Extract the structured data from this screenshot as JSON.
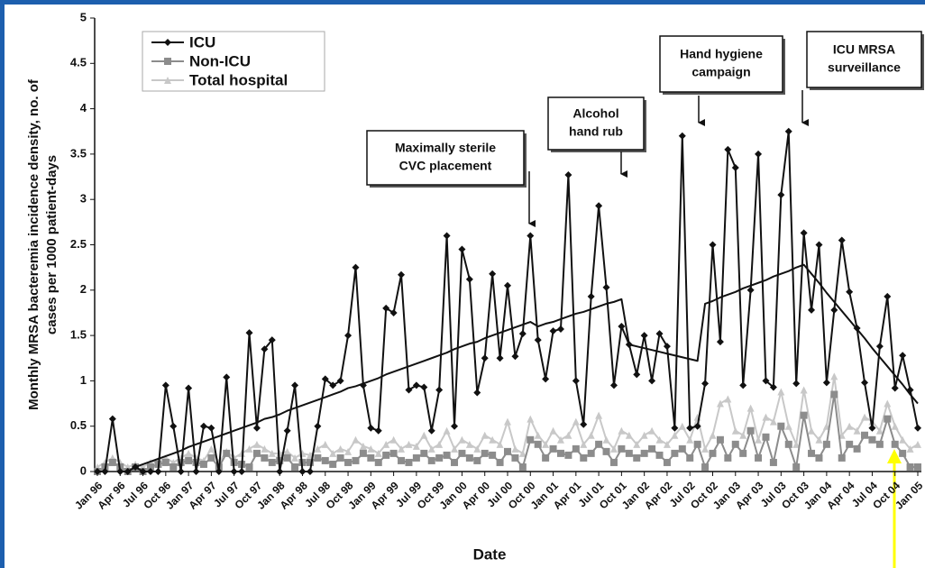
{
  "chart_data": {
    "type": "line",
    "y_label": [
      "Monthly MRSA bacteremia incidence density, no. of",
      "cases per 1000 patient-days"
    ],
    "x_label": "Date",
    "categories": [
      "Jan 96",
      null,
      null,
      "Apr 96",
      null,
      null,
      "Jul 96",
      null,
      null,
      "Oct 96",
      null,
      null,
      "Jan 97",
      null,
      null,
      "Apr 97",
      null,
      null,
      "Jul 97",
      null,
      null,
      "Oct 97",
      null,
      null,
      "Jan 98",
      null,
      null,
      "Apr 98",
      null,
      null,
      "Jul 98",
      null,
      null,
      "Oct 98",
      null,
      null,
      "Jan 99",
      null,
      null,
      "Apr 99",
      null,
      null,
      "Jul 99",
      null,
      null,
      "Oct 99",
      null,
      null,
      "Jan 00",
      null,
      null,
      "Apr 00",
      null,
      null,
      "Jul 00",
      null,
      null,
      "Oct 00",
      null,
      null,
      "Jan 01",
      null,
      null,
      "Apr 01",
      null,
      null,
      "Jul 01",
      null,
      null,
      "Oct 01",
      null,
      null,
      "Jan 02",
      null,
      null,
      "Apr 02",
      null,
      null,
      "Jul 02",
      null,
      null,
      "Oct 02",
      null,
      null,
      "Jan 03",
      null,
      null,
      "Apr 03",
      null,
      null,
      "Jul 03",
      null,
      null,
      "Oct 03",
      null,
      null,
      "Jan 04",
      null,
      null,
      "Apr 04",
      null,
      null,
      "Jul 04",
      null,
      null,
      "Oct 04",
      null,
      null,
      "Jan 05"
    ],
    "series": [
      {
        "name": "Total hospital",
        "color": "#c8c8c8",
        "marker": "triangle",
        "values": [
          0.05,
          0.1,
          0.15,
          0.1,
          0.05,
          0.08,
          0.05,
          0.1,
          0.12,
          0.15,
          0.1,
          0.15,
          0.2,
          0.15,
          0.12,
          0.25,
          0.1,
          0.22,
          0.15,
          0.2,
          0.25,
          0.3,
          0.25,
          0.2,
          0.2,
          0.22,
          0.15,
          0.2,
          0.18,
          0.25,
          0.3,
          0.2,
          0.25,
          0.22,
          0.35,
          0.28,
          0.25,
          0.2,
          0.3,
          0.35,
          0.25,
          0.3,
          0.28,
          0.4,
          0.25,
          0.3,
          0.45,
          0.25,
          0.35,
          0.3,
          0.25,
          0.4,
          0.35,
          0.3,
          0.55,
          0.25,
          0.2,
          0.58,
          0.4,
          0.3,
          0.45,
          0.35,
          0.4,
          0.55,
          0.3,
          0.4,
          0.62,
          0.35,
          0.25,
          0.45,
          0.4,
          0.3,
          0.4,
          0.45,
          0.35,
          0.3,
          0.4,
          0.5,
          0.35,
          0.6,
          0.25,
          0.4,
          0.75,
          0.8,
          0.45,
          0.4,
          0.7,
          0.35,
          0.6,
          0.55,
          0.88,
          0.5,
          0.3,
          0.9,
          0.45,
          0.35,
          0.5,
          1.05,
          0.4,
          0.5,
          0.45,
          0.6,
          0.55,
          0.45,
          0.75,
          0.5,
          0.35,
          0.25,
          0.3
        ]
      },
      {
        "name": "Non-ICU",
        "color": "#8c8c8c",
        "marker": "square",
        "values": [
          0,
          0.05,
          0.1,
          0.05,
          0,
          0.05,
          0,
          0.05,
          0.08,
          0.1,
          0.05,
          0.1,
          0.12,
          0.1,
          0.08,
          0.15,
          0.05,
          0.2,
          0.1,
          0.08,
          0.05,
          0.2,
          0.15,
          0.1,
          0.12,
          0.15,
          0.05,
          0.1,
          0.1,
          0.15,
          0.12,
          0.08,
          0.15,
          0.1,
          0.12,
          0.2,
          0.15,
          0.1,
          0.18,
          0.2,
          0.12,
          0.1,
          0.15,
          0.2,
          0.12,
          0.15,
          0.18,
          0.1,
          0.2,
          0.15,
          0.12,
          0.2,
          0.18,
          0.1,
          0.22,
          0.15,
          0.05,
          0.35,
          0.3,
          0.15,
          0.25,
          0.2,
          0.18,
          0.25,
          0.15,
          0.2,
          0.3,
          0.22,
          0.1,
          0.25,
          0.2,
          0.15,
          0.2,
          0.25,
          0.18,
          0.1,
          0.2,
          0.25,
          0.15,
          0.3,
          0.05,
          0.2,
          0.35,
          0.15,
          0.3,
          0.2,
          0.45,
          0.15,
          0.38,
          0.1,
          0.5,
          0.3,
          0.05,
          0.62,
          0.2,
          0.15,
          0.3,
          0.85,
          0.15,
          0.3,
          0.25,
          0.4,
          0.35,
          0.3,
          0.58,
          0.3,
          0.2,
          0.05,
          0.05
        ]
      },
      {
        "name": "ICU",
        "color": "#111111",
        "marker": "diamond",
        "values": [
          0,
          0,
          0.58,
          0,
          0,
          0.05,
          0,
          0,
          0,
          0.95,
          0.5,
          0,
          0.92,
          0,
          0.5,
          0.48,
          0,
          1.04,
          0,
          0,
          1.53,
          0.48,
          1.35,
          1.45,
          0,
          0.45,
          0.95,
          0,
          0,
          0.5,
          1.02,
          0.95,
          1.0,
          1.5,
          2.25,
          0.95,
          0.48,
          0.45,
          1.8,
          1.75,
          2.17,
          0.9,
          0.95,
          0.93,
          0.45,
          0.9,
          2.6,
          0.5,
          2.45,
          2.12,
          0.87,
          1.25,
          2.18,
          1.25,
          2.05,
          1.27,
          1.52,
          2.6,
          1.45,
          1.02,
          1.55,
          1.57,
          3.27,
          1.0,
          0.52,
          1.93,
          2.93,
          2.03,
          0.95,
          1.6,
          1.4,
          1.07,
          1.5,
          1.0,
          1.52,
          1.38,
          0.48,
          3.7,
          0.48,
          0.5,
          0.97,
          2.5,
          1.43,
          3.55,
          3.35,
          0.95,
          2.0,
          3.5,
          1.0,
          0.93,
          3.05,
          3.75,
          0.97,
          2.63,
          1.78,
          2.5,
          0.98,
          1.78,
          2.55,
          1.98,
          1.58,
          0.98,
          0.48,
          1.38,
          1.93,
          0.92,
          1.28,
          0.9,
          0.48
        ]
      }
    ],
    "trend": {
      "color": "#111111",
      "values": [
        null,
        null,
        null,
        null,
        null,
        0.05,
        0.08,
        0.11,
        0.14,
        0.17,
        0.2,
        0.23,
        0.27,
        0.3,
        0.33,
        0.36,
        0.39,
        0.42,
        0.45,
        0.48,
        0.51,
        0.54,
        0.58,
        0.6,
        0.63,
        0.67,
        0.7,
        0.73,
        0.76,
        0.79,
        0.82,
        0.85,
        0.88,
        0.92,
        0.94,
        0.97,
        1.0,
        1.03,
        1.07,
        1.1,
        1.13,
        1.16,
        1.19,
        1.22,
        1.25,
        1.28,
        1.31,
        1.35,
        1.38,
        1.41,
        1.43,
        1.47,
        1.5,
        1.53,
        1.56,
        1.59,
        1.62,
        1.65,
        1.6,
        1.63,
        1.65,
        1.68,
        1.71,
        1.74,
        1.76,
        1.79,
        1.82,
        1.85,
        1.87,
        1.9,
        1.4,
        1.38,
        1.36,
        1.34,
        1.32,
        1.3,
        1.28,
        1.26,
        1.24,
        1.22,
        1.85,
        1.88,
        1.92,
        1.95,
        1.98,
        2.02,
        2.05,
        2.08,
        2.11,
        2.15,
        2.18,
        2.21,
        2.25,
        2.28,
        2.18,
        2.08,
        1.97,
        1.87,
        1.77,
        1.67,
        1.57,
        1.47,
        1.36,
        1.26,
        1.16,
        1.06,
        0.96,
        0.85,
        0.75
      ]
    },
    "annotations": [
      {
        "text": [
          "Maximally sterile",
          "CVC placement"
        ]
      },
      {
        "text": [
          "Alcohol",
          "hand rub"
        ]
      },
      {
        "text": [
          "Hand hygiene",
          "campaign"
        ]
      },
      {
        "text": [
          "ICU MRSA",
          "surveillance"
        ]
      }
    ],
    "ylim": [
      0,
      5
    ],
    "yticks": [
      0,
      0.5,
      1,
      1.5,
      2,
      2.5,
      3,
      3.5,
      4,
      4.5,
      5
    ],
    "legend": "upper left"
  }
}
